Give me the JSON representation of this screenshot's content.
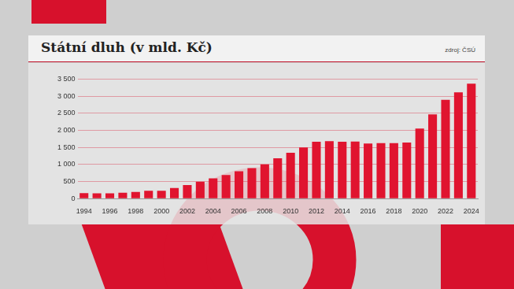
{
  "chart_data": {
    "type": "bar",
    "title": "Státní dluh (v mld. Kč)",
    "source": "zdroj: ČSÚ",
    "categories": [
      "1994",
      null,
      "1996",
      null,
      "1998",
      null,
      "2000",
      null,
      "2002",
      null,
      "2004",
      null,
      "2006",
      null,
      "2008",
      null,
      "2010",
      null,
      "2012",
      null,
      "2014",
      null,
      "2016",
      null,
      "2018",
      null,
      "2020",
      null,
      "2022",
      null,
      "2024"
    ],
    "values": [
      158,
      154,
      155,
      173,
      195,
      229,
      229,
      310,
      395,
      493,
      592,
      691,
      802,
      892,
      999,
      1178,
      1344,
      1500,
      1667,
      1683,
      1663,
      1673,
      1613,
      1624,
      1622,
      1640,
      2049,
      2466,
      2895,
      3111,
      3365
    ],
    "color": "#e0142f",
    "ylim": [
      0,
      3500
    ],
    "yticks": [
      0,
      500,
      {
        "value": 1000,
        "label": "1 000"
      },
      {
        "value": 1500,
        "label": "1 500"
      },
      {
        "value": 2000,
        "label": "2 000"
      },
      {
        "value": 2500,
        "label": "2 500"
      },
      {
        "value": 3000,
        "label": "3 000"
      },
      {
        "value": 3500,
        "label": "3 500"
      }
    ],
    "grid": true
  }
}
